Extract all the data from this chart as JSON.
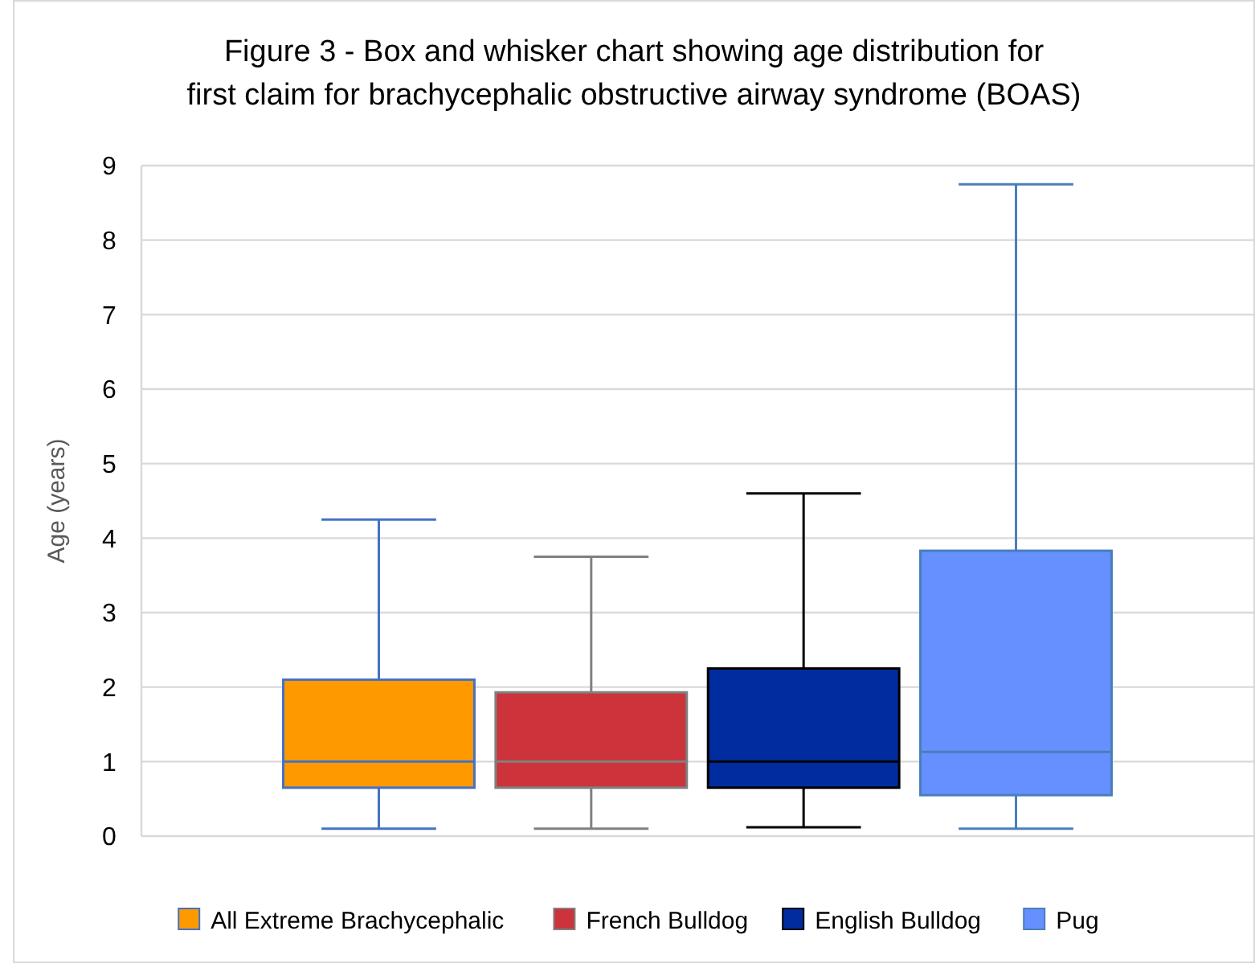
{
  "chart_data": {
    "type": "box",
    "title": "Figure 3 - Box and whisker chart showing age distribution for first claim for brachycephalic obstructive airway syndrome (BOAS)",
    "ylabel": "Age (years)",
    "categories": [
      null
    ],
    "ylim": [
      0,
      9
    ],
    "yticks": [
      0,
      1,
      2,
      3,
      4,
      5,
      6,
      7,
      8,
      9
    ],
    "grid": "y",
    "legend": "bottom",
    "series": [
      {
        "name": "All Extreme Brachycephalic",
        "color": "#ff9900",
        "boxes": [
          {
            "low": 0.1,
            "q1": 0.65,
            "median": 1.0,
            "q3": 2.1,
            "high": 4.25
          }
        ]
      },
      {
        "name": "French Bulldog",
        "color": "#cc333b",
        "boxes": [
          {
            "low": 0.1,
            "q1": 0.65,
            "median": 1.0,
            "q3": 1.93,
            "high": 3.75
          }
        ]
      },
      {
        "name": "English Bulldog",
        "color": "#002ca0",
        "boxes": [
          {
            "low": 0.12,
            "q1": 0.65,
            "median": 1.0,
            "q3": 2.25,
            "high": 4.6
          }
        ]
      },
      {
        "name": "Pug",
        "color": "#6690ff",
        "boxes": [
          {
            "low": 0.1,
            "q1": 0.55,
            "median": 1.13,
            "q3": 3.83,
            "high": 8.75
          }
        ]
      }
    ]
  }
}
